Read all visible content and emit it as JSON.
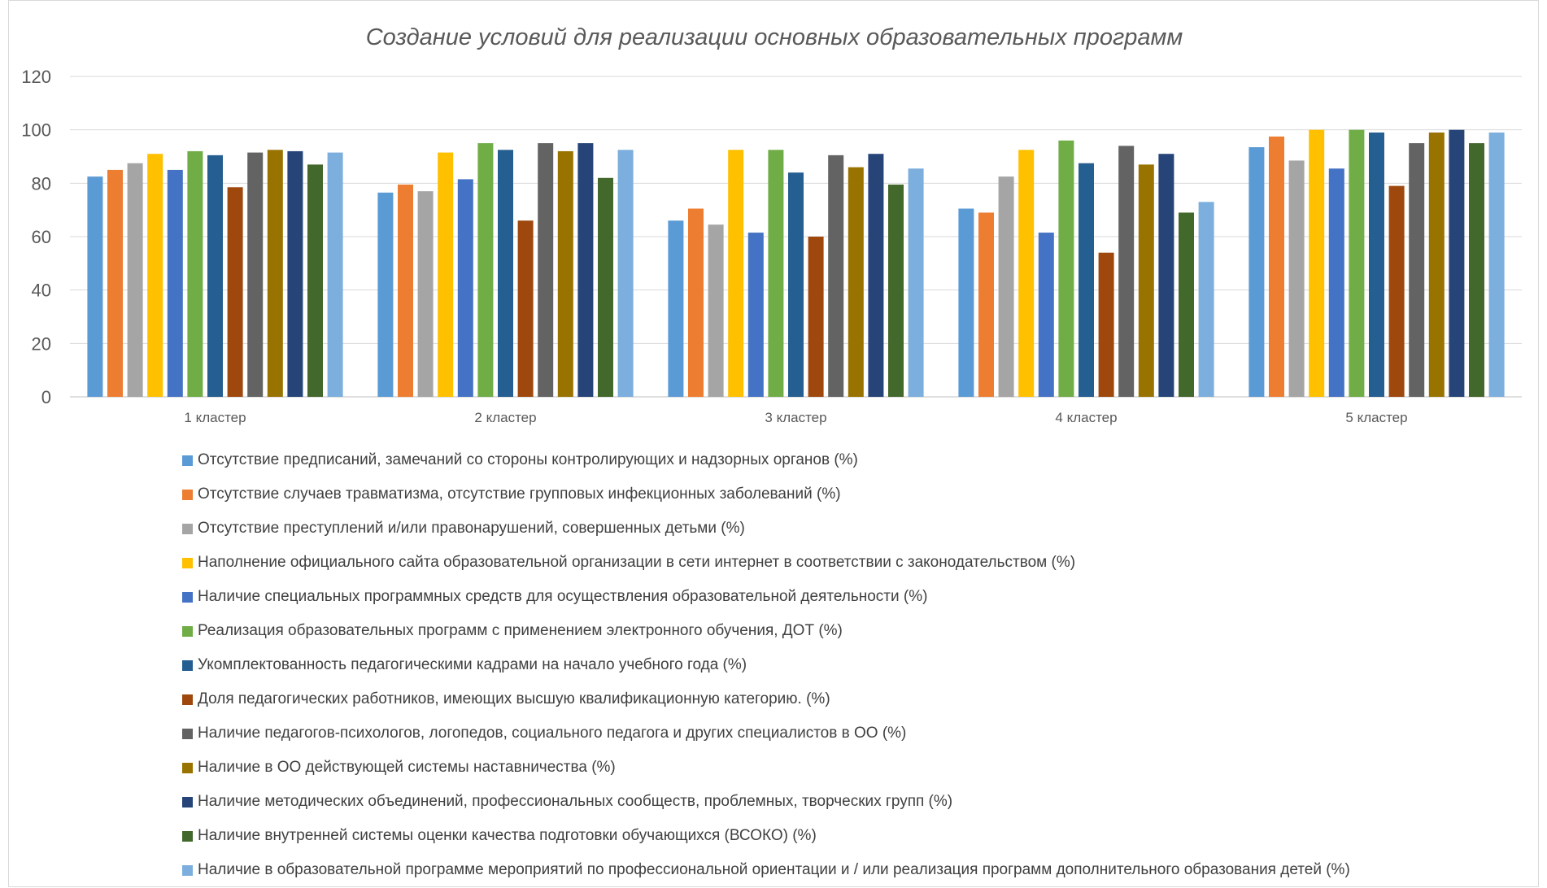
{
  "chart_data": {
    "type": "bar",
    "title": "Создание условий для реализации основных образовательных программ",
    "xlabel": "",
    "ylabel": "",
    "ylim": [
      0,
      120
    ],
    "yticks": [
      0,
      20,
      40,
      60,
      80,
      100,
      120
    ],
    "grid": true,
    "legend_position": "bottom",
    "categories": [
      "1 кластер",
      "2 кластер",
      "3 кластер",
      "4 кластер",
      "5 кластер"
    ],
    "series": [
      {
        "name": "Отсутствие предписаний, замечаний со стороны контролирующих и надзорных органов (%)",
        "color": "#5B9BD5",
        "values": [
          82.5,
          76.5,
          66,
          70.5,
          93.5
        ]
      },
      {
        "name": "Отсутствие случаев травматизма, отсутствие групповых инфекционных заболеваний (%)",
        "color": "#ED7D31",
        "values": [
          85,
          79.5,
          70.5,
          69,
          97.5
        ]
      },
      {
        "name": "Отсутствие преступлений и/или правонарушений, совершенных детьми (%)",
        "color": "#A5A5A5",
        "values": [
          87.5,
          77,
          64.5,
          82.5,
          88.5
        ]
      },
      {
        "name": "Наполнение официального сайта образовательной организации в сети интернет в соответствии с законодательством (%)",
        "color": "#FFC000",
        "values": [
          91,
          91.5,
          92.5,
          92.5,
          100
        ]
      },
      {
        "name": "Наличие специальных программных средств для осуществления образовательной деятельности (%)",
        "color": "#4472C4",
        "values": [
          85,
          81.5,
          61.5,
          61.5,
          85.5
        ]
      },
      {
        "name": "Реализация образовательных программ с применением электронного обучения, ДОТ (%)",
        "color": "#70AD47",
        "values": [
          92,
          95,
          92.5,
          96,
          100
        ]
      },
      {
        "name": "Укомплектованность педагогическими кадрами на начало учебного года (%)",
        "color": "#255E91",
        "values": [
          90.5,
          92.5,
          84,
          87.5,
          99
        ]
      },
      {
        "name": "Доля педагогических работников, имеющих высшую квалификационную категорию. (%)",
        "color": "#9E480E",
        "values": [
          78.5,
          66,
          60,
          54,
          79
        ]
      },
      {
        "name": "Наличие педагогов-психологов, логопедов, социального педагога и других специалистов в ОО (%)",
        "color": "#636363",
        "values": [
          91.5,
          95,
          90.5,
          94,
          95
        ]
      },
      {
        "name": "Наличие в ОО действующей системы наставничества (%)",
        "color": "#997300",
        "values": [
          92.5,
          92,
          86,
          87,
          99
        ]
      },
      {
        "name": "Наличие методических объединений, профессиональных сообществ, проблемных, творческих групп (%)",
        "color": "#264478",
        "values": [
          92,
          95,
          91,
          91,
          100
        ]
      },
      {
        "name": "Наличие внутренней системы оценки качества подготовки обучающихся (ВСОКО) (%)",
        "color": "#43682B",
        "values": [
          87,
          82,
          79.5,
          69,
          95
        ]
      },
      {
        "name": "Наличие в образовательной программе мероприятий по профессиональной ориентации и / или реализация программ дополнительного образования детей (%)",
        "color": "#7CAFDD",
        "values": [
          91.5,
          92.5,
          85.5,
          73,
          99
        ]
      }
    ]
  }
}
